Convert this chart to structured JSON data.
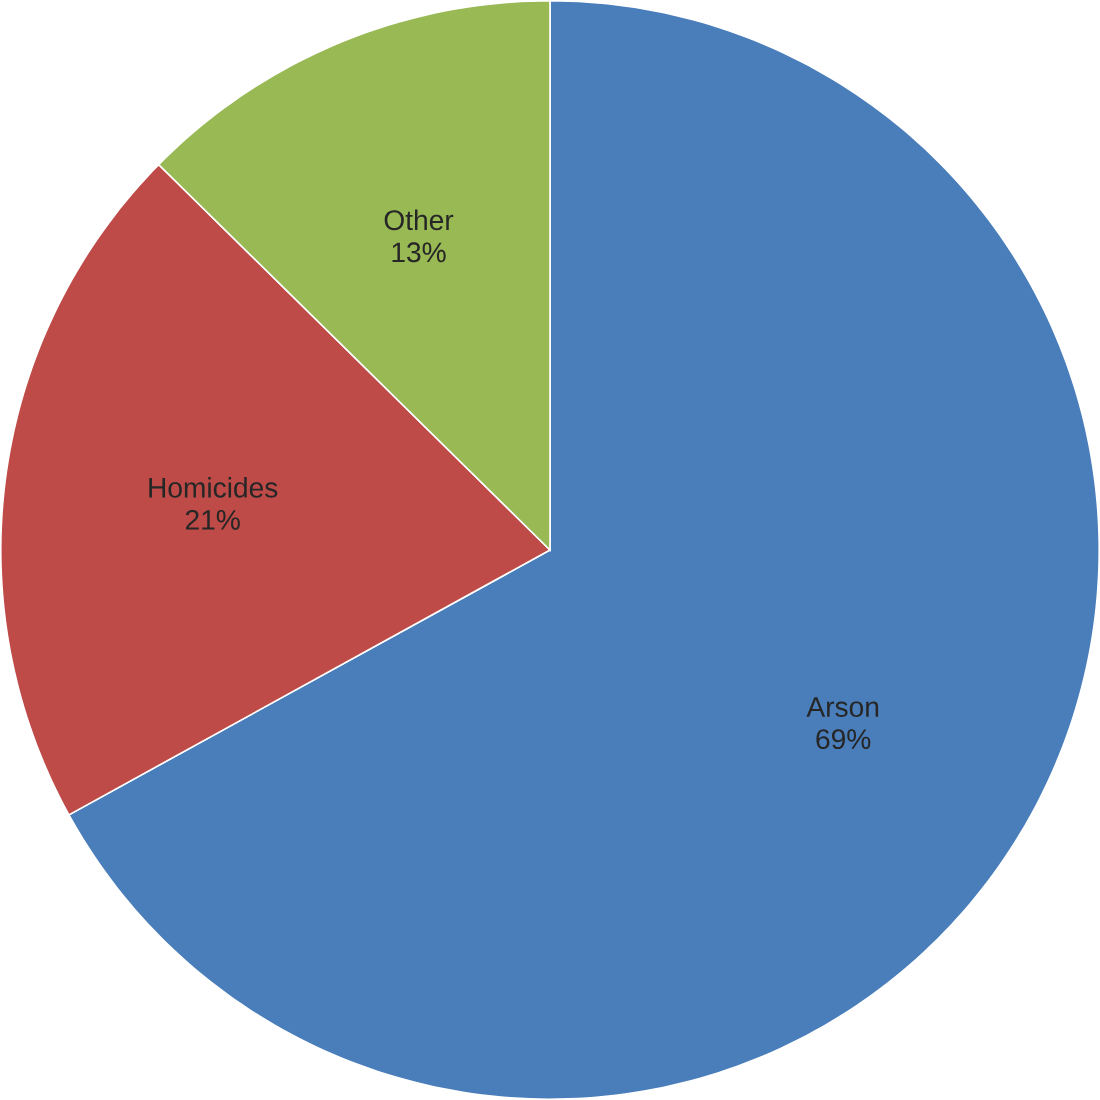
{
  "chart_data": {
    "type": "pie",
    "categories": [
      "Arson",
      "Homicides",
      "Other"
    ],
    "values": [
      69,
      21,
      13
    ],
    "value_labels": [
      "69%",
      "21%",
      "13%"
    ],
    "colors": [
      "#4a7ebb",
      "#be4b48",
      "#98b954"
    ],
    "legend": false
  }
}
